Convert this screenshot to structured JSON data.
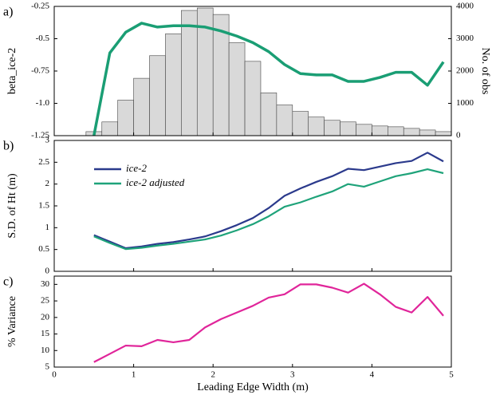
{
  "chart_data": [
    {
      "type": "histogram",
      "label": "a)",
      "ylabel": "beta_ice-2",
      "y2label": "No. of obs",
      "xlim": [
        0,
        5
      ],
      "xticks": [
        0,
        1,
        2,
        3,
        4,
        5
      ],
      "show_xtick_labels": false,
      "ylim": [
        -1.25,
        -0.25
      ],
      "yticks": [
        -0.25,
        -0.5,
        -0.75,
        {
          "value": -1,
          "label": "-1.0"
        },
        -1.25
      ],
      "y2lim": [
        0,
        4000
      ],
      "y2ticks": [
        0,
        1000,
        2000,
        3000,
        4000
      ],
      "bins": [
        0.4,
        0.6,
        0.8,
        1.0,
        1.2,
        1.4,
        1.6,
        1.8,
        2.0,
        2.2,
        2.4,
        2.6,
        2.8,
        3.0,
        3.2,
        3.4,
        3.6,
        3.8,
        4.0,
        4.2,
        4.4,
        4.6,
        4.8,
        5.0
      ],
      "counts": [
        125,
        425,
        1100,
        1775,
        2475,
        3150,
        3875,
        3950,
        3750,
        2875,
        2300,
        1325,
        950,
        750,
        575,
        475,
        425,
        350,
        300,
        275,
        225,
        175,
        125
      ],
      "bar_color": "#d9d9d9",
      "counts_axis": "y2",
      "x": [
        0.5,
        0.7,
        0.9,
        1.1,
        1.3,
        1.5,
        1.7,
        1.9,
        2.1,
        2.3,
        2.5,
        2.7,
        2.9,
        3.1,
        3.3,
        3.5,
        3.7,
        3.9,
        4.1,
        4.3,
        4.5,
        4.7,
        4.9
      ],
      "series": [
        {
          "color": "#1a9e74",
          "values": [
            -1.25,
            -0.61,
            -0.45,
            -0.38,
            -0.41,
            -0.4,
            -0.4,
            -0.41,
            -0.44,
            -0.48,
            -0.53,
            -0.6,
            -0.7,
            -0.77,
            -0.78,
            -0.78,
            -0.83,
            -0.83,
            -0.8,
            -0.76,
            -0.76,
            -0.86,
            -0.68
          ]
        }
      ]
    },
    {
      "type": "line",
      "label": "b)",
      "ylabel": "S.D. of Ht (m)",
      "xlim": [
        0,
        5
      ],
      "xticks": [
        0,
        1,
        2,
        3,
        4,
        5
      ],
      "show_xtick_labels": false,
      "ylim": [
        0,
        3
      ],
      "yticks": [
        0,
        0.5,
        1,
        1.5,
        2,
        2.5,
        3
      ],
      "x": [
        0.5,
        0.7,
        0.9,
        1.1,
        1.3,
        1.5,
        1.7,
        1.9,
        2.1,
        2.3,
        2.5,
        2.7,
        2.9,
        3.1,
        3.3,
        3.5,
        3.7,
        3.9,
        4.1,
        4.3,
        4.5,
        4.7,
        4.9
      ],
      "series": [
        {
          "name": "ice-2",
          "color": "#2b3a8c",
          "values": [
            0.83,
            0.68,
            0.53,
            0.57,
            0.63,
            0.67,
            0.73,
            0.8,
            0.92,
            1.06,
            1.22,
            1.45,
            1.73,
            1.9,
            2.05,
            2.18,
            2.35,
            2.32,
            2.4,
            2.48,
            2.53,
            2.72,
            2.52
          ]
        },
        {
          "name": "ice-2 adjusted",
          "color": "#1fa37a",
          "values": [
            0.8,
            0.65,
            0.51,
            0.54,
            0.59,
            0.63,
            0.68,
            0.73,
            0.82,
            0.94,
            1.08,
            1.26,
            1.48,
            1.58,
            1.71,
            1.83,
            2.0,
            1.94,
            2.06,
            2.18,
            2.25,
            2.34,
            2.25
          ]
        }
      ]
    },
    {
      "type": "line",
      "label": "c)",
      "ylabel": "% Variance",
      "xlabel": "Leading Edge Width (m)",
      "xlim": [
        0,
        5
      ],
      "xticks": [
        0,
        1,
        2,
        3,
        4,
        5
      ],
      "show_xtick_labels": true,
      "ylim": [
        5,
        32.5
      ],
      "yticks": [
        5,
        10,
        15,
        20,
        25,
        30
      ],
      "x": [
        0.5,
        0.7,
        0.9,
        1.1,
        1.3,
        1.5,
        1.7,
        1.9,
        2.1,
        2.3,
        2.5,
        2.7,
        2.9,
        3.1,
        3.3,
        3.5,
        3.7,
        3.9,
        4.1,
        4.3,
        4.5,
        4.7,
        4.9
      ],
      "series": [
        {
          "color": "#e0259a",
          "values": [
            6.5,
            9,
            11.5,
            11.3,
            13.2,
            12.5,
            13.2,
            17,
            19.5,
            21.5,
            23.5,
            26,
            27,
            30,
            30,
            29,
            27.5,
            30.2,
            27,
            23.2,
            21.5,
            26.2,
            20.5
          ]
        }
      ]
    }
  ]
}
